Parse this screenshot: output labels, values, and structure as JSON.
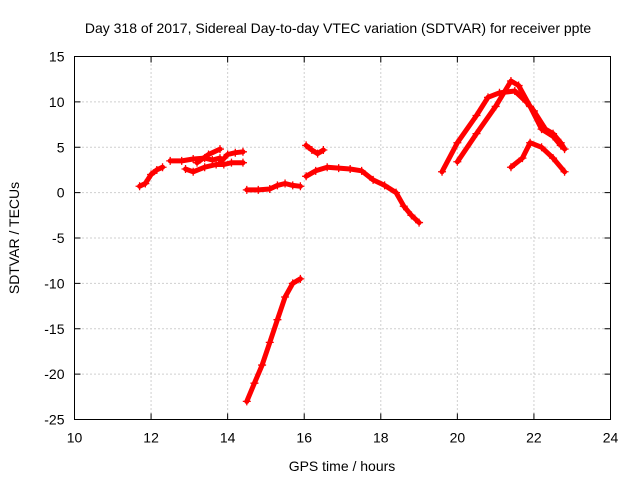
{
  "chart_data": {
    "type": "scatter",
    "title": "Day 318 of 2017, Sidereal Day-to-day VTEC variation (SDTVAR) for receiver ppte",
    "xlabel": "GPS time / hours",
    "ylabel": "SDTVAR / TECUs",
    "xlim": [
      10,
      24
    ],
    "ylim": [
      -25,
      15
    ],
    "xticks": [
      10,
      12,
      14,
      16,
      18,
      20,
      22,
      24
    ],
    "yticks": [
      -25,
      -20,
      -15,
      -10,
      -5,
      0,
      5,
      10,
      15
    ],
    "grid": true,
    "marker": "+",
    "color": "#ff0000",
    "series": [
      {
        "points": [
          [
            11.7,
            0.7
          ],
          [
            11.85,
            1.0
          ],
          [
            12.0,
            2.0
          ],
          [
            12.15,
            2.5
          ],
          [
            12.3,
            2.8
          ]
        ]
      },
      {
        "points": [
          [
            12.5,
            3.5
          ],
          [
            12.8,
            3.5
          ],
          [
            13.1,
            3.7
          ],
          [
            13.4,
            3.8
          ],
          [
            13.6,
            3.6
          ],
          [
            13.8,
            3.8
          ]
        ]
      },
      {
        "points": [
          [
            12.9,
            2.6
          ],
          [
            13.1,
            2.3
          ],
          [
            13.4,
            2.8
          ],
          [
            13.7,
            3.1
          ],
          [
            13.9,
            3.1
          ],
          [
            14.1,
            3.3
          ],
          [
            14.4,
            3.3
          ]
        ]
      },
      {
        "points": [
          [
            13.2,
            3.3
          ],
          [
            13.5,
            4.2
          ],
          [
            13.8,
            4.8
          ]
        ]
      },
      {
        "points": [
          [
            13.8,
            3.3
          ],
          [
            14.0,
            4.2
          ],
          [
            14.2,
            4.4
          ],
          [
            14.4,
            4.5
          ]
        ]
      },
      {
        "points": [
          [
            14.5,
            0.3
          ],
          [
            14.8,
            0.3
          ],
          [
            15.1,
            0.4
          ],
          [
            15.3,
            0.8
          ],
          [
            15.5,
            1.0
          ],
          [
            15.7,
            0.8
          ],
          [
            15.9,
            0.7
          ]
        ]
      },
      {
        "points": [
          [
            14.5,
            -23.0
          ],
          [
            14.7,
            -21.0
          ],
          [
            14.9,
            -19.0
          ],
          [
            15.1,
            -16.5
          ],
          [
            15.3,
            -14.0
          ],
          [
            15.5,
            -11.5
          ],
          [
            15.7,
            -10.0
          ],
          [
            15.9,
            -9.5
          ]
        ]
      },
      {
        "points": [
          [
            16.05,
            5.2
          ],
          [
            16.2,
            4.7
          ],
          [
            16.35,
            4.3
          ],
          [
            16.5,
            4.7
          ]
        ]
      },
      {
        "points": [
          [
            16.05,
            1.8
          ],
          [
            16.3,
            2.4
          ],
          [
            16.6,
            2.8
          ],
          [
            16.9,
            2.7
          ],
          [
            17.2,
            2.6
          ],
          [
            17.5,
            2.4
          ],
          [
            17.8,
            1.4
          ],
          [
            18.1,
            0.8
          ],
          [
            18.4,
            0.0
          ],
          [
            18.6,
            -1.5
          ],
          [
            18.8,
            -2.5
          ],
          [
            19.0,
            -3.3
          ]
        ]
      },
      {
        "points": [
          [
            19.6,
            2.3
          ],
          [
            20.0,
            5.5
          ],
          [
            20.5,
            8.5
          ],
          [
            20.8,
            10.5
          ],
          [
            21.1,
            11.0
          ],
          [
            21.5,
            11.2
          ],
          [
            21.8,
            10.0
          ],
          [
            22.0,
            9.0
          ],
          [
            22.3,
            7.0
          ],
          [
            22.5,
            6.5
          ],
          [
            22.7,
            5.5
          ],
          [
            22.8,
            4.8
          ]
        ]
      },
      {
        "points": [
          [
            20.0,
            3.4
          ],
          [
            20.5,
            6.5
          ],
          [
            21.0,
            9.5
          ],
          [
            21.4,
            12.3
          ],
          [
            21.6,
            11.8
          ],
          [
            21.9,
            9.5
          ],
          [
            22.2,
            7.0
          ],
          [
            22.5,
            6.2
          ],
          [
            22.7,
            5.2
          ]
        ]
      },
      {
        "points": [
          [
            21.4,
            2.8
          ],
          [
            21.7,
            3.8
          ],
          [
            21.9,
            5.5
          ],
          [
            22.2,
            5.0
          ],
          [
            22.5,
            3.8
          ],
          [
            22.8,
            2.3
          ]
        ]
      }
    ]
  }
}
